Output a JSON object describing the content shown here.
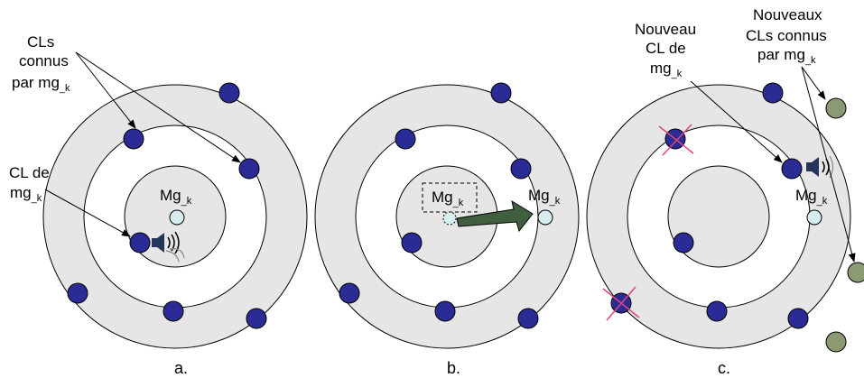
{
  "panels": [
    {
      "id": "a",
      "caption": "a.",
      "center_label": "Mg",
      "center_label_sub": "_k",
      "labels": [
        {
          "lines": [
            "CLs",
            "connus",
            "par mg"
          ],
          "last_sub": "_k"
        },
        {
          "lines": [
            "CL de",
            "mg"
          ],
          "last_sub": "_k"
        }
      ]
    },
    {
      "id": "b",
      "caption": "b.",
      "old_label": "Mg",
      "old_label_sub": "_k",
      "new_label": "Mg",
      "new_label_sub": "_k"
    },
    {
      "id": "c",
      "caption": "c.",
      "center_label": "Mg",
      "center_label_sub": "_k",
      "labels": [
        {
          "lines": [
            "Nouveau",
            "CL de",
            "mg"
          ],
          "last_sub": "_k"
        },
        {
          "lines": [
            "Nouveaux",
            "CLs connus",
            "par mg"
          ],
          "last_sub": "_k"
        }
      ]
    }
  ],
  "colors": {
    "ring_fill": "#e6e6e6",
    "white": "#ffffff",
    "node": "#2b2b96",
    "mobile_node": "#d6eef0",
    "external_node": "#8c9a74",
    "arrow": "#3f5f3f",
    "cross": "#e0457a",
    "speaker": "#24375a"
  },
  "icons": [
    "speaker-icon",
    "cross-mark-icon",
    "move-arrow-icon"
  ]
}
